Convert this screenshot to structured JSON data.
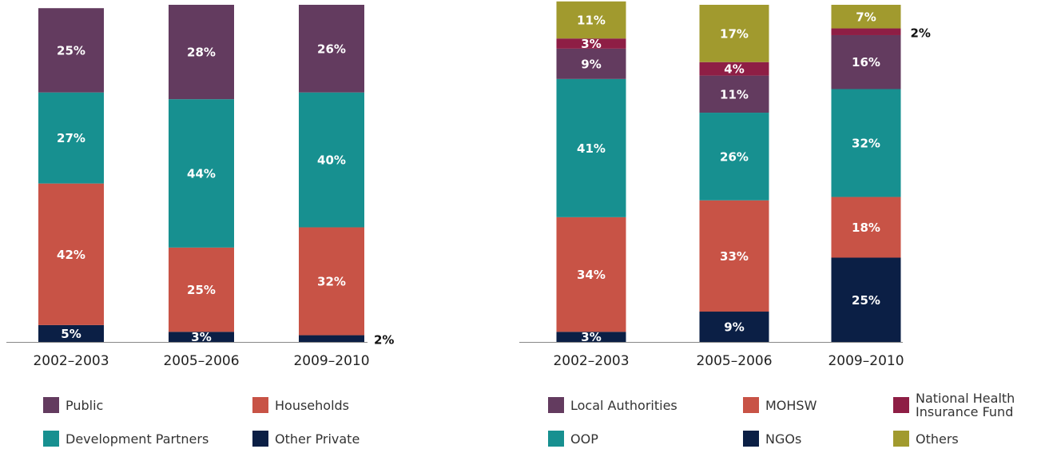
{
  "chart_data": [
    {
      "type": "stacked_bar",
      "categories": [
        "2002–2003",
        "2005–2006",
        "2009–2010"
      ],
      "ylim": [
        0,
        100
      ],
      "series": [
        {
          "name": "Other Private",
          "color": "#0b1f45",
          "values": [
            5,
            3,
            2
          ],
          "value_labels": [
            "5%",
            "3%",
            "2%"
          ]
        },
        {
          "name": "Households",
          "color": "#c85346",
          "values": [
            42,
            25,
            32
          ],
          "value_labels": [
            "42%",
            "25%",
            "32%"
          ]
        },
        {
          "name": "Development Partners",
          "color": "#179090",
          "values": [
            27,
            44,
            40
          ],
          "value_labels": [
            "27%",
            "44%",
            "40%"
          ]
        },
        {
          "name": "Public",
          "color": "#633b5f",
          "values": [
            25,
            28,
            26
          ],
          "value_labels": [
            "25%",
            "28%",
            "26%"
          ]
        }
      ]
    },
    {
      "type": "stacked_bar",
      "categories": [
        "2002–2003",
        "2005–2006",
        "2009–2010"
      ],
      "ylim": [
        0,
        100
      ],
      "series": [
        {
          "name": "NGOs",
          "color": "#0b1f45",
          "values": [
            3,
            9,
            25
          ],
          "value_labels": [
            "3%",
            "9%",
            "25%"
          ]
        },
        {
          "name": "MOHSW",
          "color": "#c85346",
          "values": [
            34,
            33,
            18
          ],
          "value_labels": [
            "34%",
            "33%",
            "18%"
          ]
        },
        {
          "name": "OOP",
          "color": "#179090",
          "values": [
            41,
            26,
            32
          ],
          "value_labels": [
            "41%",
            "26%",
            "32%"
          ]
        },
        {
          "name": "Local Authorities",
          "color": "#633b5f",
          "values": [
            9,
            11,
            16
          ],
          "value_labels": [
            "9%",
            "11%",
            "16%"
          ]
        },
        {
          "name": "National Health Insurance Fund",
          "color": "#8e1e45",
          "values": [
            3,
            4,
            2
          ],
          "value_labels": [
            "3%",
            "4%",
            "2%"
          ]
        },
        {
          "name": "Others",
          "color": "#a19a2e",
          "values": [
            11,
            17,
            7
          ],
          "value_labels": [
            "11%",
            "17%",
            "7%"
          ]
        }
      ]
    }
  ]
}
